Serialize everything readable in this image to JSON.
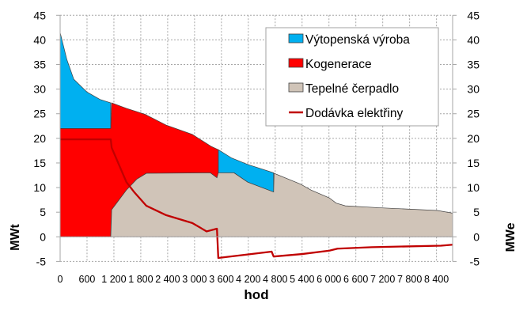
{
  "chart_data": {
    "type": "area",
    "title": "",
    "xlabel": "hod",
    "ylabel_left": "MWt",
    "ylabel_right": "MWe",
    "xlim": [
      0,
      8760
    ],
    "ylim": [
      -5,
      45
    ],
    "x_ticks": [
      "0",
      "600",
      "1 200",
      "1 800",
      "2 400",
      "3 000",
      "3 600",
      "4 200",
      "4 800",
      "5 400",
      "6 000",
      "6 600",
      "7 200",
      "7 800",
      "8 400"
    ],
    "x_tick_values": [
      0,
      600,
      1200,
      1800,
      2400,
      3000,
      3600,
      4200,
      4800,
      5400,
      6000,
      6600,
      7200,
      7800,
      8400
    ],
    "y_ticks": [
      "-5",
      "0",
      "5",
      "10",
      "15",
      "20",
      "25",
      "30",
      "35",
      "40",
      "45"
    ],
    "y_tick_values": [
      -5,
      0,
      5,
      10,
      15,
      20,
      25,
      30,
      35,
      40,
      45
    ],
    "grid": true,
    "legend_position": "top-right",
    "series": [
      {
        "name": "Výtopenská výroba",
        "color": "#00b0f0",
        "kind": "area",
        "segments": [
          {
            "top": [
              [
                0,
                41.5
              ],
              [
                150,
                36
              ],
              [
                305,
                32
              ],
              [
                600,
                29.4
              ],
              [
                890,
                27.9
              ],
              [
                1130,
                27.2
              ]
            ],
            "bottom": [
              [
                0,
                22
              ],
              [
                1130,
                22
              ]
            ]
          },
          {
            "top": [
              [
                3530,
                17.7
              ],
              [
                3830,
                16.0
              ],
              [
                4185,
                14.7
              ],
              [
                4765,
                13.0
              ]
            ],
            "bottom": [
              [
                3530,
                13
              ],
              [
                3880,
                13
              ],
              [
                4185,
                11.1
              ],
              [
                4765,
                9.1
              ]
            ]
          }
        ]
      },
      {
        "name": "Kogenerace",
        "color": "#ff0000",
        "kind": "area",
        "segments": [
          {
            "top": [
              [
                0,
                22
              ],
              [
                1130,
                22
              ],
              [
                1150,
                27.2
              ],
              [
                1480,
                26.1
              ],
              [
                1890,
                24.9
              ],
              [
                2365,
                22.7
              ],
              [
                2950,
                20.8
              ],
              [
                3365,
                18.4
              ],
              [
                3530,
                17.7
              ]
            ],
            "bottom": [
              [
                0,
                0
              ],
              [
                1130,
                0
              ],
              [
                1150,
                5.5
              ],
              [
                1480,
                9.5
              ],
              [
                1710,
                11.7
              ],
              [
                1925,
                12.9
              ],
              [
                3350,
                13
              ],
              [
                3500,
                12
              ],
              [
                3530,
                12
              ]
            ]
          }
        ]
      },
      {
        "name": "Tepelné čerpadlo",
        "color": "#d0c4b8",
        "kind": "area",
        "segments": [
          {
            "top": [
              [
                1130,
                0
              ],
              [
                1150,
                5.5
              ],
              [
                1480,
                9.5
              ],
              [
                1710,
                11.7
              ],
              [
                1925,
                12.9
              ],
              [
                3350,
                13
              ],
              [
                3500,
                12
              ],
              [
                3530,
                13
              ],
              [
                3880,
                13
              ],
              [
                4185,
                11.1
              ],
              [
                4765,
                9.1
              ],
              [
                4775,
                12.9
              ],
              [
                5365,
                10.7
              ],
              [
                5600,
                9.5
              ],
              [
                6010,
                7.9
              ],
              [
                6160,
                6.85
              ],
              [
                6365,
                6.3
              ],
              [
                7130,
                5.9
              ],
              [
                8420,
                5.35
              ],
              [
                8760,
                4.8
              ]
            ],
            "bottom": [
              [
                1130,
                0
              ],
              [
                8760,
                0
              ]
            ]
          }
        ]
      },
      {
        "name": "Dodávka elektřiny",
        "color": "#c00000",
        "kind": "line",
        "points": [
          [
            0,
            19.8
          ],
          [
            1130,
            19.8
          ],
          [
            1150,
            18.1
          ],
          [
            1480,
            11.1
          ],
          [
            1660,
            9
          ],
          [
            1925,
            6.3
          ],
          [
            2365,
            4.4
          ],
          [
            2950,
            2.8
          ],
          [
            3270,
            1.1
          ],
          [
            3500,
            1.65
          ],
          [
            3530,
            -4.3
          ],
          [
            4720,
            -3.0
          ],
          [
            4765,
            -4.0
          ],
          [
            5400,
            -3.5
          ],
          [
            6010,
            -2.8
          ],
          [
            6190,
            -2.4
          ],
          [
            6960,
            -2.1
          ],
          [
            8500,
            -1.8
          ],
          [
            8760,
            -1.6
          ]
        ]
      }
    ]
  }
}
